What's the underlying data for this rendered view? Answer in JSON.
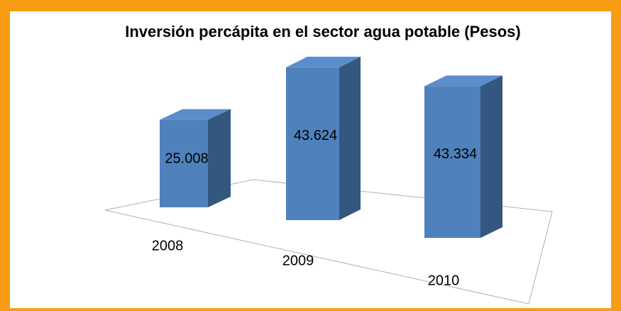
{
  "chart_data": {
    "type": "bar3d",
    "title": "Inversión percápita en el sector agua potable (Pesos)",
    "categories": [
      "2008",
      "2009",
      "2010"
    ],
    "values": [
      25.008,
      43.624,
      43.334
    ],
    "color": "#4f81bd"
  }
}
